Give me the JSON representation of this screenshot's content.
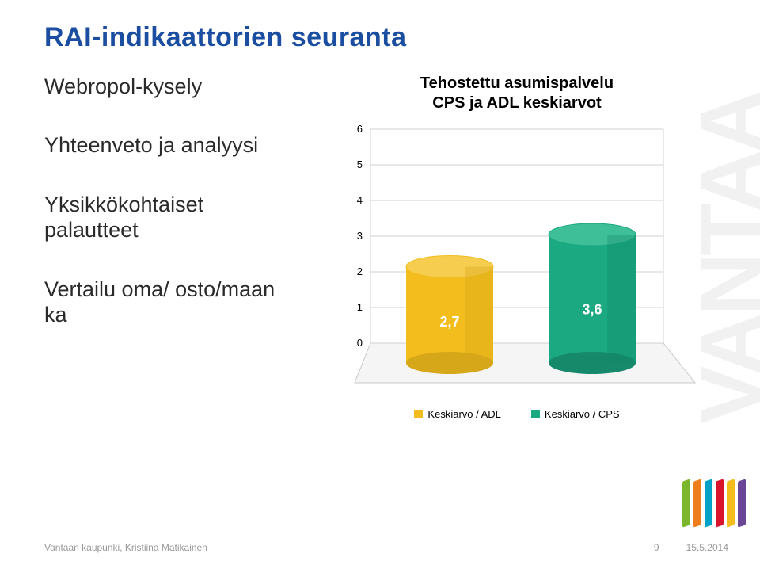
{
  "title": "RAI-indikaattorien seuranta",
  "bullets": [
    "Webropol-kysely",
    "Yhteenveto ja analyysi",
    "Yksikkökohtaiset palautteet",
    "Vertailu oma/ osto/maan ka"
  ],
  "chart": {
    "type": "bar-3d",
    "title_line1": "Tehostettu asumispalvelu",
    "title_line2": "CPS ja ADL keskiarvot",
    "ylim": [
      0,
      6
    ],
    "yticks": [
      0,
      1,
      2,
      3,
      4,
      5,
      6
    ],
    "series": [
      {
        "label": "Keskiarvo / ADL",
        "value": 2.7,
        "value_label": "2,7",
        "fill": "#f2bd1d",
        "side": "#d7a71a",
        "top": "#f6cd4f"
      },
      {
        "label": "Keskiarvo / CPS",
        "value": 3.6,
        "value_label": "3,6",
        "fill": "#1aa981",
        "side": "#15896a",
        "top": "#3fbf98"
      }
    ],
    "floor_fill": "#f5f5f5",
    "floor_stroke": "#c8c8c8",
    "wall_fill": "#ffffff",
    "wall_stroke": "#d0d0d0",
    "axis_font_size": 13
  },
  "legend_swatch_colors": [
    "#f2bd1d",
    "#1aa981"
  ],
  "watermark_text": "VANTAA",
  "footer": {
    "left": "Vantaan kaupunki, Kristiina Matikainen",
    "page": "9",
    "date": "15.5.2014"
  },
  "stripes": [
    "#7ab72d",
    "#ee7d1b",
    "#00a3c7",
    "#d7142b",
    "#f2bd1d",
    "#6a4796"
  ]
}
